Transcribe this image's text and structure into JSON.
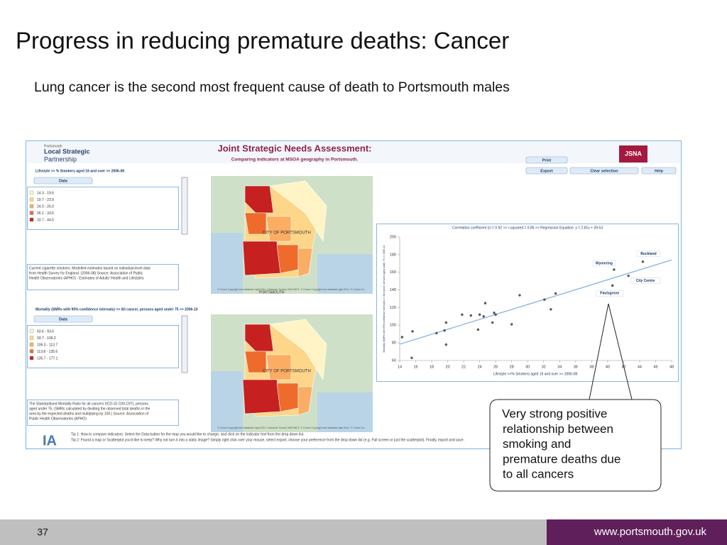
{
  "slide": {
    "title": "Progress in reducing premature deaths: Cancer",
    "subtitle": "Lung cancer is the second most frequent cause of death to Portsmouth males",
    "page_number": "37",
    "url": "www.portsmouth.gov.uk"
  },
  "app": {
    "logo_small": "Portsmouth",
    "logo_main": [
      "Local Strategic",
      "Partnership"
    ],
    "title": "Joint Strategic Needs Assessment:",
    "subtitle": "Comparing indicators at MSOA geography in Portsmouth.",
    "badge": "JSNA",
    "buttons": [
      "Print",
      "Export",
      "Clear selection",
      "Help"
    ],
    "map_label": "CITY OF PORTSMOUTH",
    "map_label2": "PORTSMOUTH",
    "copyright": "© Crown Copyright and database right 2011. Ordnance Survey 100019671. © Crown Copyright and database right 2011. © Crown Co...",
    "tips": [
      "Tip 1: How to compare indicators: Select the Data button for the map you would like to change, and click on the indicator text from the drop down list.",
      "Tip 2: Found a map or Scatterplot you'd like to keep? Why not turn it into a static image? Simply right click over your mouse, select export, choose your preference from the drop down list (e.g. Full screen or just the scatterplot). Finally, export and save."
    ],
    "panels": [
      {
        "indicator": "Lifestyle >> % Smokers aged 16 and over >> 2006-08",
        "button": "Data",
        "legend": [
          "14.3 - 19.6",
          "19.7 - 23.9",
          "24.0 - 26.0",
          "26.1 - 33.6",
          "33.7 - 44.5"
        ],
        "colors": [
          "#fff4c6",
          "#fdd68a",
          "#fbad63",
          "#ee6b2c",
          "#c62020"
        ],
        "description": [
          "Current cigarette smokers. Modelled estimates based on individual-level data",
          "from Health Survey for England. (2006-08) Source: Association of Public",
          "Health Observatories (APHO) - Estimates of Adults' Health and Lifestyles"
        ]
      },
      {
        "indicator": "Mortality (SMRs with 95% confidence intervals) >> All cancer, persons aged under 75 >> 2006-10",
        "button": "Data",
        "legend": [
          "63.6 - 93.6",
          "93.7 - 106.2",
          "106.3 - 113.7",
          "113.8 - 135.6",
          "135.7 - 177.1"
        ],
        "colors": [
          "#fff4c6",
          "#fdd68a",
          "#fbad63",
          "#ee6b2c",
          "#c62020"
        ],
        "description": [
          "The Standardised Mortality Ratio for all cancers (ICD-10 C00-C97), persons",
          "aged under 75. (SMRs calculated by dividing the observed total deaths in the",
          "area by the expected deaths and multiplying by 100.) Source: Association of",
          "Public Health Observatories (APHO)"
        ]
      }
    ]
  },
  "scatter": {
    "type": "scatter",
    "title": "Correlation coefficient (r) = 0.92 >> r-squared = 0.85 >> Regression Equation: y = 2.81x + 39.53",
    "xlabel": "Lifestyle >>% Smokers aged 16 and over >> 2006-08",
    "ylabel": "Mortality (SMRs with 95% confidence intervals) >> All cancer, persons aged under 75 >> 2006-10",
    "x": [
      14.3,
      15.6,
      15.5,
      18.6,
      19.6,
      19.8,
      19.8,
      21.8,
      22.9,
      23.8,
      24.0,
      24.5,
      24.7,
      25.6,
      25.8,
      26.0,
      28.0,
      29.0,
      32.1,
      32.9,
      33.5,
      40.6,
      40.8,
      42.6,
      44.4
    ],
    "values": [
      86.5,
      93,
      63,
      91,
      94,
      103,
      78,
      112,
      111,
      95,
      112,
      110,
      125,
      103,
      114,
      112,
      101,
      134,
      129,
      118,
      136,
      145,
      163,
      156,
      172
    ],
    "color": "#555555",
    "trendline": {
      "color": "#8fb8de",
      "x": [
        14,
        48
      ],
      "values": [
        78.5,
        174
      ]
    },
    "xlim": [
      14,
      48
    ],
    "xticks": [
      14,
      16,
      18,
      20,
      22,
      24,
      26,
      28,
      30,
      32,
      34,
      36,
      38,
      40,
      42,
      44,
      46,
      48
    ],
    "ylim": [
      60,
      200
    ],
    "yticks": [
      60,
      80,
      100,
      120,
      140,
      160,
      180,
      200
    ],
    "point_labels": [
      {
        "text": "Buckland",
        "x": 44.4,
        "y": 172
      },
      {
        "text": "Wymering",
        "x": 40.8,
        "y": 163
      },
      {
        "text": "City Centre",
        "x": 42.6,
        "y": 156
      },
      {
        "text": "Paulsgrove",
        "x": 40.6,
        "y": 145
      }
    ]
  },
  "callout": {
    "lines": [
      "Very strong positive",
      "relationship between",
      "smoking and",
      "premature deaths due",
      "to all cancers"
    ]
  }
}
